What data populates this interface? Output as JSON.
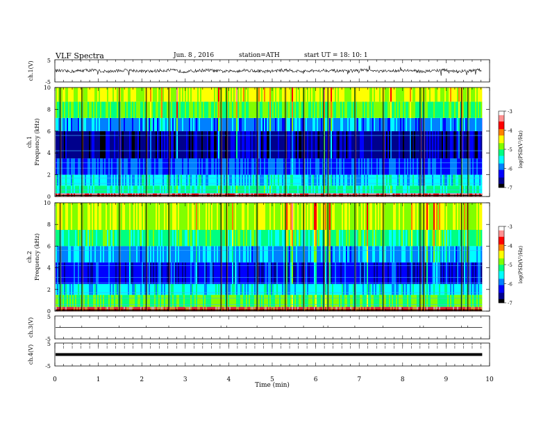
{
  "header": {
    "title": "VLF  Spectra",
    "date": "Jun. 8 , 2016",
    "station": "station=ATH",
    "start": "start  UT =   18: 10: 1"
  },
  "colorbar": {
    "label": "log(PSD(V²/Hz)",
    "ticks": [
      "-3",
      "-4",
      "-5",
      "-6",
      "-7"
    ],
    "range": [
      -7,
      -3
    ],
    "colors": [
      "#000000",
      "#00008c",
      "#0000ff",
      "#0080ff",
      "#00ffff",
      "#00ff80",
      "#80ff00",
      "#ffff00",
      "#ff8000",
      "#ff0000",
      "#ff9090",
      "#ffffff"
    ]
  },
  "chart_data": [
    {
      "type": "line",
      "name": "ch1-waveform",
      "ylabel": "ch.1(V)",
      "ylim": [
        -5,
        5
      ],
      "y_ticks": [
        "5",
        "-5"
      ],
      "baseline": 0,
      "description_values": "noise waveform around 0 V, amplitude about ±1 V with spikes"
    },
    {
      "type": "heatmap",
      "name": "ch1-spectrogram",
      "ylabel": "ch.1\nFrequency  (kHz)",
      "ylim": [
        0,
        10
      ],
      "y_ticks": [
        "0",
        "2",
        "4",
        "6",
        "8",
        "10"
      ],
      "bands_khz": [
        {
          "from": 0,
          "to": 0.3,
          "level": -3.5
        },
        {
          "from": 0.3,
          "to": 1.0,
          "level": -5.3
        },
        {
          "from": 1.0,
          "to": 2.0,
          "level": -5.6
        },
        {
          "from": 2.0,
          "to": 3.5,
          "level": -6.1
        },
        {
          "from": 3.5,
          "to": 6.0,
          "level": -6.6
        },
        {
          "from": 6.0,
          "to": 7.2,
          "level": -5.9
        },
        {
          "from": 7.2,
          "to": 8.7,
          "level": -5.0
        },
        {
          "from": 8.7,
          "to": 10.0,
          "level": -4.6
        }
      ]
    },
    {
      "type": "heatmap",
      "name": "ch2-spectrogram",
      "ylabel": "ch.2\nFrequency  (kHz)",
      "ylim": [
        0,
        10
      ],
      "y_ticks": [
        "0",
        "2",
        "4",
        "6",
        "8",
        "10"
      ],
      "bands_khz": [
        {
          "from": 0,
          "to": 0.4,
          "level": -3.8
        },
        {
          "from": 0.4,
          "to": 1.5,
          "level": -5.0
        },
        {
          "from": 1.5,
          "to": 2.5,
          "level": -5.6
        },
        {
          "from": 2.5,
          "to": 4.5,
          "level": -6.3
        },
        {
          "from": 4.5,
          "to": 6.0,
          "level": -5.8
        },
        {
          "from": 6.0,
          "to": 7.5,
          "level": -5.2
        },
        {
          "from": 7.5,
          "to": 10.0,
          "level": -4.7
        }
      ]
    },
    {
      "type": "line",
      "name": "ch3-waveform",
      "ylabel": "ch.3(V)",
      "ylim": [
        -5,
        5
      ],
      "y_ticks": [
        "5",
        "-5"
      ],
      "baseline": 0
    },
    {
      "type": "line",
      "name": "ch4-waveform",
      "ylabel": "ch.4(V)",
      "ylim": [
        -5,
        5
      ],
      "y_ticks": [
        "5",
        "-5"
      ],
      "baseline": 0
    }
  ],
  "xaxis": {
    "label": "Time  (min)",
    "ticks": [
      "0",
      "1",
      "2",
      "3",
      "4",
      "5",
      "6",
      "7",
      "8",
      "9",
      "10"
    ],
    "xlim": [
      0,
      10
    ],
    "data_end": 9.83,
    "spike_minutes": [
      0.12,
      0.62,
      1.48,
      2.1,
      2.62,
      3.82,
      3.95,
      4.65,
      5.3,
      5.72,
      6.18,
      6.28,
      6.9,
      7.55,
      8.4,
      8.48,
      9.35,
      9.5
    ]
  }
}
